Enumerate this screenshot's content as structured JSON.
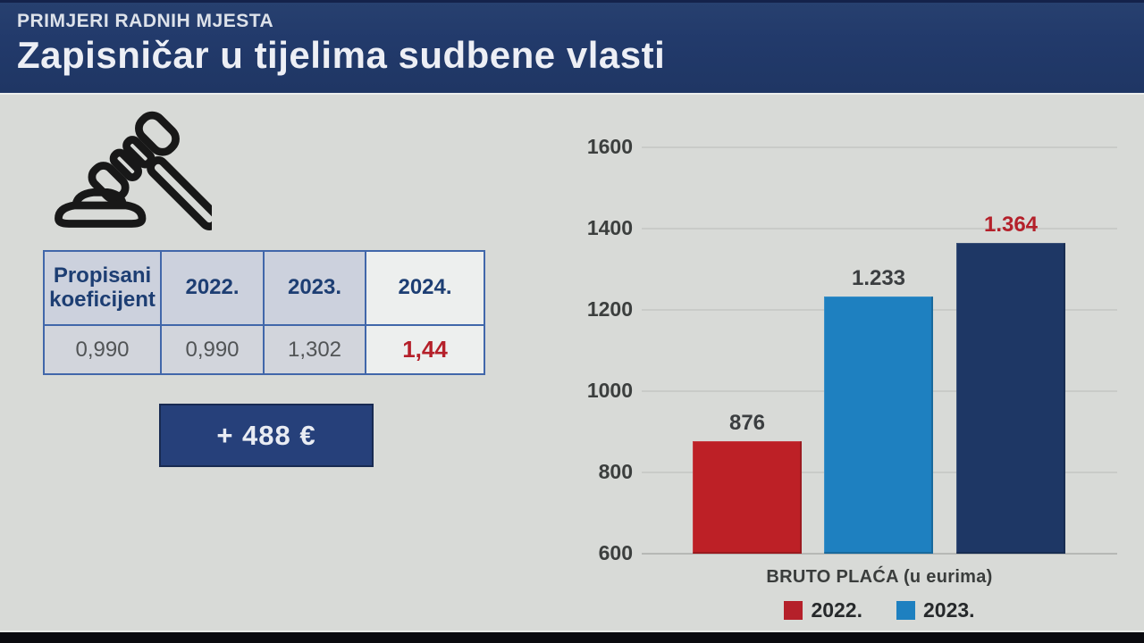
{
  "header": {
    "kicker": "PRIMJERI RADNIH MJESTA",
    "title": "Zapisničar u tijelima sudbene vlasti"
  },
  "left_panel": {
    "icon": "gavel-icon",
    "table": {
      "columns": [
        "Propisani koeficijent",
        "2022.",
        "2023.",
        "2024."
      ],
      "values": [
        "0,990",
        "0,990",
        "1,302",
        "1,44"
      ],
      "highlighted_column": "2024.",
      "highlight_value_color": "#b5202a"
    },
    "delta_label": "+ 488 €"
  },
  "chart_data": {
    "type": "bar",
    "categories": [
      "2022.",
      "2023.",
      "2024."
    ],
    "values": [
      876,
      1233,
      1364
    ],
    "value_labels": [
      "876",
      "1.233",
      "1.364"
    ],
    "bar_colors": [
      "#bd2026",
      "#1e80c0",
      "#1e3765"
    ],
    "value_label_colors": [
      "#3b3e40",
      "#3b3e40",
      "#b4202a"
    ],
    "title": "",
    "xlabel": "BRUTO PLAĆA (u eurima)",
    "ylabel": "",
    "ylim": [
      600,
      1600
    ],
    "yticks": [
      600,
      800,
      1000,
      1200,
      1400,
      1600
    ],
    "grid": true,
    "legend_position": "bottom",
    "legend": [
      {
        "label": "2022.",
        "color": "#b5202a"
      },
      {
        "label": "2023.",
        "color": "#1e80c0"
      }
    ]
  },
  "colors": {
    "header_bg": "#213a6b",
    "body_bg": "#d8dad7",
    "accent_navy": "#26407a",
    "accent_red": "#b5202a",
    "accent_blue": "#1e80c0"
  }
}
